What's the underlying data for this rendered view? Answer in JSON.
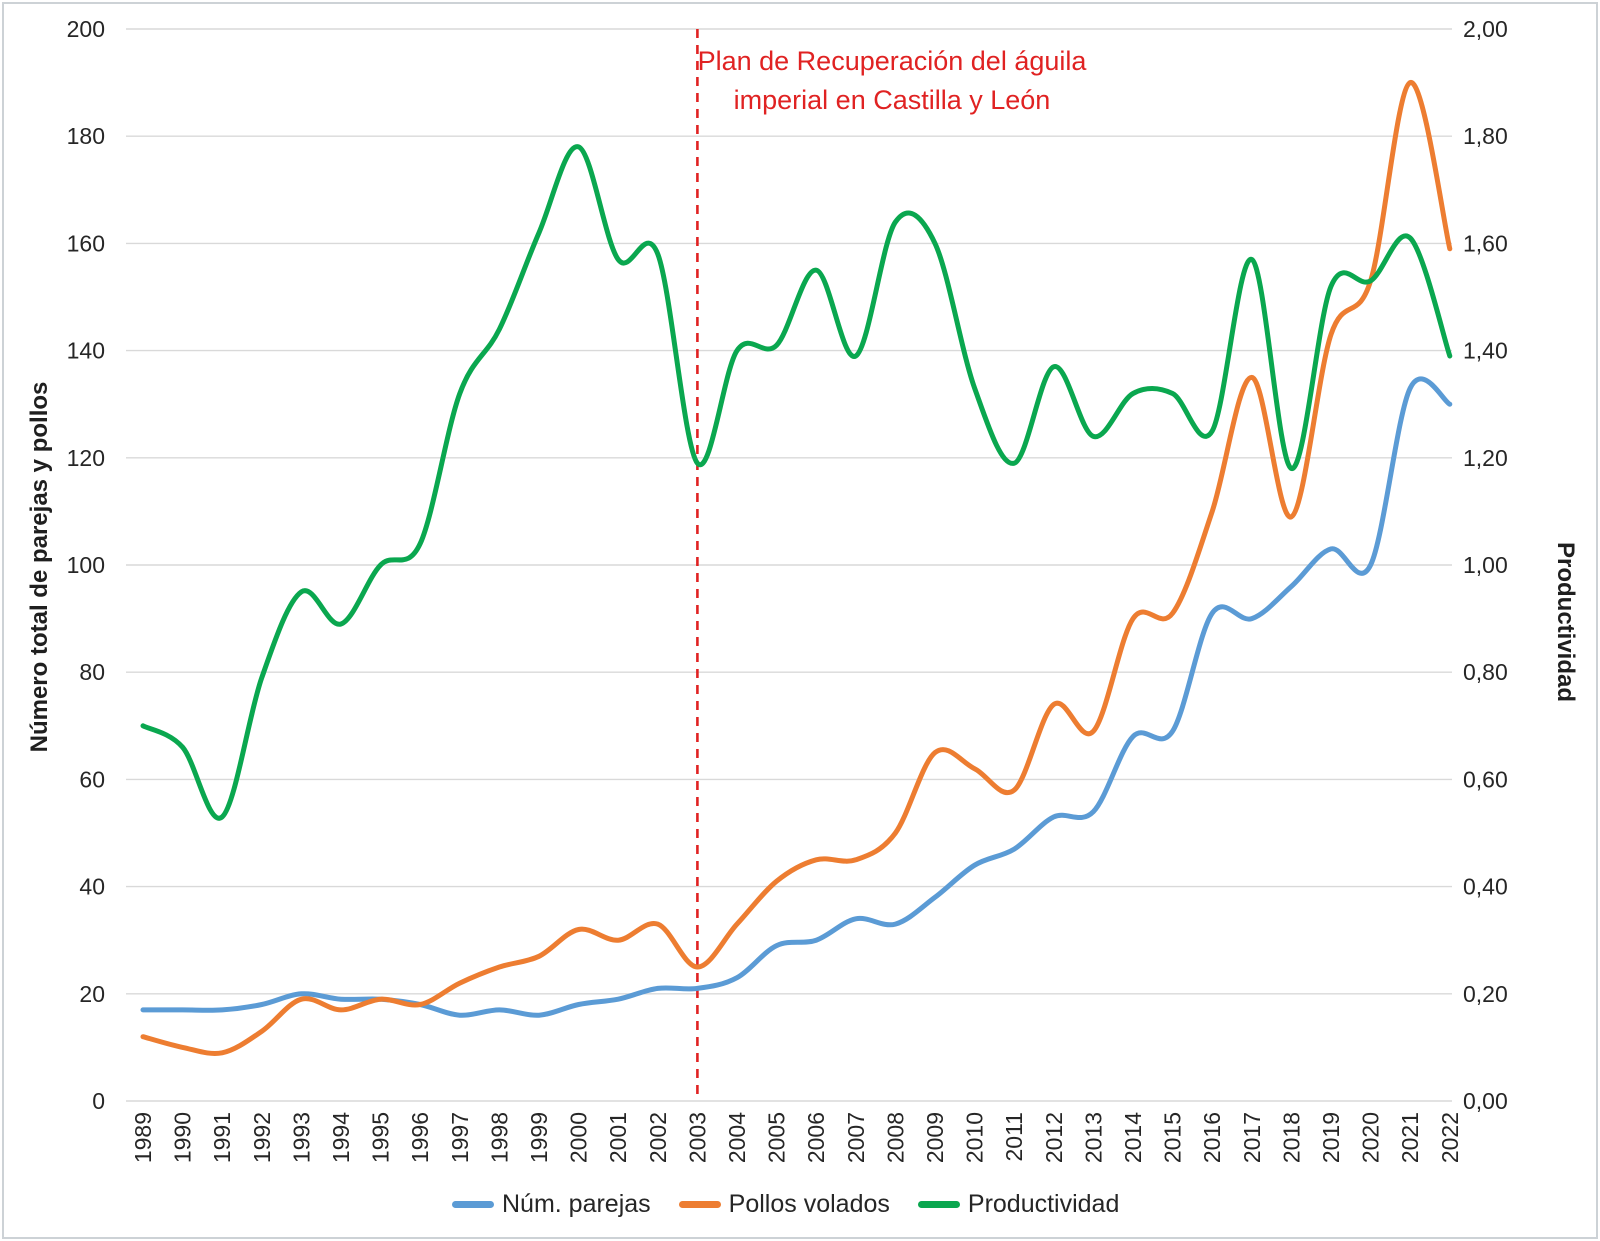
{
  "chart_data": {
    "type": "line",
    "title": "",
    "smoothing": "spline",
    "grid": "horizontal",
    "legend_position": "bottom",
    "x": [
      1989,
      1990,
      1991,
      1992,
      1993,
      1994,
      1995,
      1996,
      1997,
      1998,
      1999,
      2000,
      2001,
      2002,
      2003,
      2004,
      2005,
      2006,
      2007,
      2008,
      2009,
      2010,
      2011,
      2012,
      2013,
      2014,
      2015,
      2016,
      2017,
      2018,
      2019,
      2020,
      2021,
      2022
    ],
    "series": [
      {
        "name": "Núm. parejas",
        "axis": "left",
        "color": "#5B9BD5",
        "values": [
          17,
          17,
          17,
          18,
          20,
          19,
          19,
          18,
          16,
          17,
          16,
          18,
          19,
          21,
          21,
          23,
          29,
          30,
          34,
          33,
          38,
          44,
          47,
          53,
          54,
          68,
          69,
          91,
          90,
          96,
          103,
          100,
          133,
          130
        ]
      },
      {
        "name": "Pollos volados",
        "axis": "left",
        "color": "#ED7D31",
        "values": [
          12,
          10,
          9,
          13,
          19,
          17,
          19,
          18,
          22,
          25,
          27,
          32,
          30,
          33,
          25,
          33,
          41,
          45,
          45,
          50,
          65,
          62,
          58,
          74,
          69,
          90,
          91,
          110,
          135,
          109,
          143,
          153,
          190,
          159
        ]
      },
      {
        "name": "Productividad",
        "axis": "right",
        "color": "#0AA74F",
        "values": [
          0.7,
          0.66,
          0.53,
          0.79,
          0.95,
          0.89,
          1.0,
          1.04,
          1.32,
          1.44,
          1.62,
          1.78,
          1.57,
          1.58,
          1.19,
          1.4,
          1.41,
          1.55,
          1.39,
          1.64,
          1.6,
          1.33,
          1.19,
          1.37,
          1.24,
          1.32,
          1.32,
          1.25,
          1.57,
          1.18,
          1.52,
          1.53,
          1.61,
          1.39
        ]
      }
    ],
    "left_axis": {
      "label": "Número total de parejas y pollos",
      "min": 0,
      "max": 200,
      "step": 20,
      "ticks": [
        "0",
        "20",
        "40",
        "60",
        "80",
        "100",
        "120",
        "140",
        "160",
        "180",
        "200"
      ]
    },
    "right_axis": {
      "label": "Productividad",
      "min": 0,
      "max": 2,
      "step": 0.2,
      "ticks": [
        "0,00",
        "0,20",
        "0,40",
        "0,60",
        "0,80",
        "1,00",
        "1,20",
        "1,40",
        "1,60",
        "1,80",
        "2,00"
      ]
    },
    "annotation": {
      "line1": "Plan de Recuperación del águila",
      "line2": "imperial en Castilla y León",
      "x_year": 2003,
      "color": "#E02222"
    },
    "colors": {
      "gridline": "#D9D9D9",
      "tick_text": "#262626",
      "event_line": "#E02222"
    }
  }
}
